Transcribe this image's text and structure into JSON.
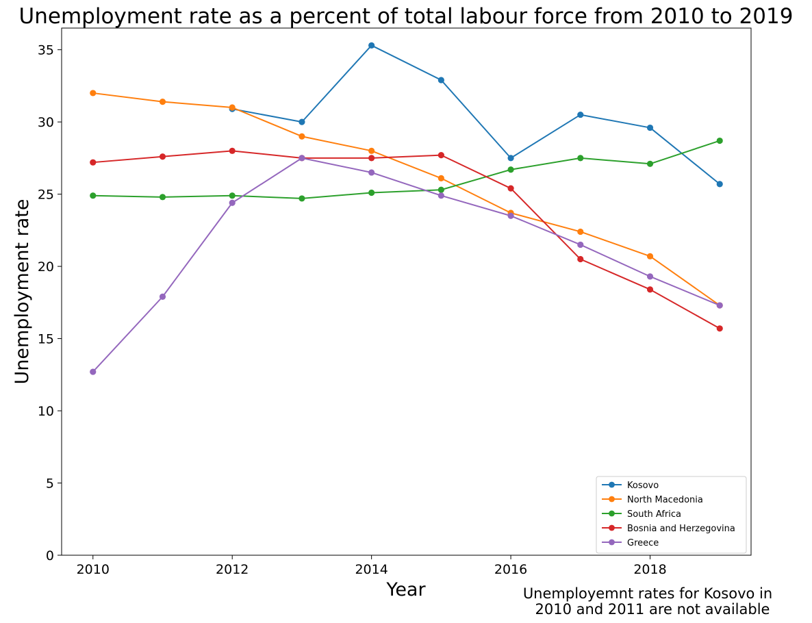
{
  "chart_data": {
    "type": "line",
    "title": "Unemployment rate as a percent of total labour force from 2010 to 2019",
    "xlabel": "Year",
    "ylabel": "Unemployment rate",
    "xlim": [
      2009.55,
      2019.45
    ],
    "ylim": [
      0,
      36.5
    ],
    "xticks": [
      2010,
      2012,
      2014,
      2016,
      2018
    ],
    "yticks": [
      0,
      5,
      10,
      15,
      20,
      25,
      30,
      35
    ],
    "grid": false,
    "legend_position": "lower-right",
    "annotation": [
      "Unemployemnt rates for Kosovo in",
      "2010 and 2011 are not available"
    ],
    "x": [
      2010,
      2011,
      2012,
      2013,
      2014,
      2015,
      2016,
      2017,
      2018,
      2019
    ],
    "series": [
      {
        "name": "Kosovo",
        "color": "#1f77b4",
        "values": [
          null,
          null,
          30.9,
          30.0,
          35.3,
          32.9,
          27.5,
          30.5,
          29.6,
          25.7
        ]
      },
      {
        "name": "North Macedonia",
        "color": "#ff7f0e",
        "values": [
          32.0,
          31.4,
          31.0,
          29.0,
          28.0,
          26.1,
          23.7,
          22.4,
          20.7,
          17.3
        ]
      },
      {
        "name": "South Africa",
        "color": "#2ca02c",
        "values": [
          24.9,
          24.8,
          24.9,
          24.7,
          25.1,
          25.3,
          26.7,
          27.5,
          27.1,
          28.7
        ]
      },
      {
        "name": "Bosnia and Herzegovina",
        "color": "#d62728",
        "values": [
          27.2,
          27.6,
          28.0,
          27.5,
          27.5,
          27.7,
          25.4,
          20.5,
          18.4,
          15.7
        ]
      },
      {
        "name": "Greece",
        "color": "#9467bd",
        "values": [
          12.7,
          17.9,
          24.4,
          27.5,
          26.5,
          24.9,
          23.5,
          21.5,
          19.3,
          17.3
        ]
      }
    ]
  }
}
